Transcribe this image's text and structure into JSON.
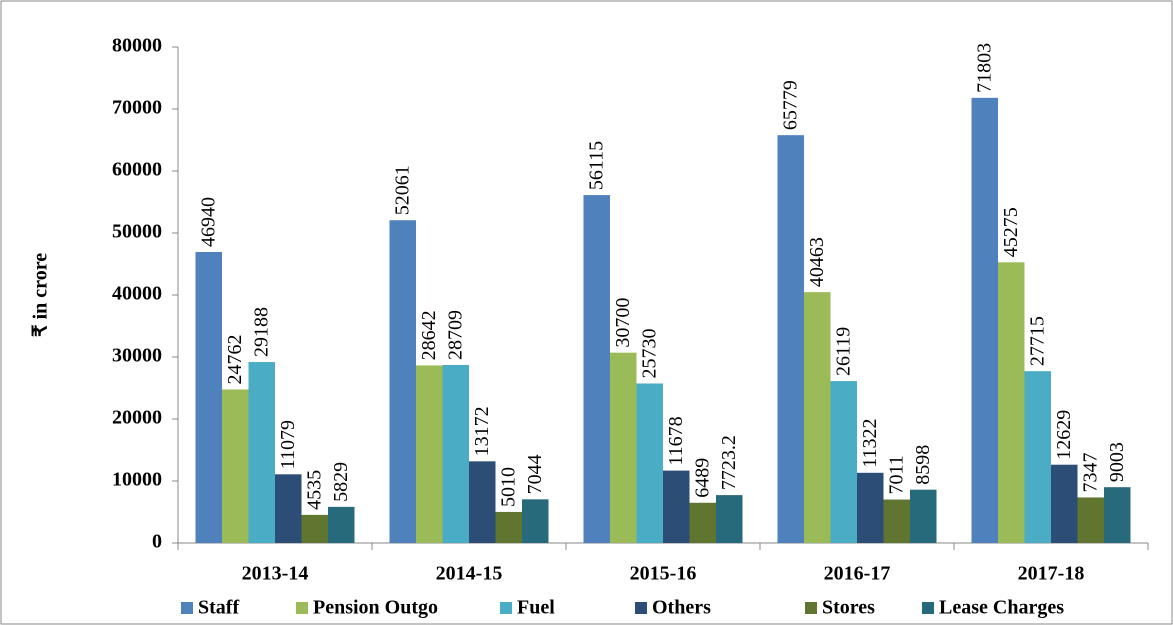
{
  "chart_data": {
    "type": "bar",
    "ylabel": "₹ in crore",
    "categories": [
      "2013-14",
      "2014-15",
      "2015-16",
      "2016-17",
      "2017-18"
    ],
    "series": [
      {
        "name": "Staff",
        "color": "#4f81bd",
        "values": [
          46940,
          52061,
          56115,
          65779,
          71803
        ]
      },
      {
        "name": "Pension Outgo",
        "color": "#9bbb59",
        "values": [
          24762,
          28642,
          30700,
          40463,
          45275
        ]
      },
      {
        "name": "Fuel",
        "color": "#4bacc6",
        "values": [
          29188,
          28709,
          25730,
          26119,
          27715
        ]
      },
      {
        "name": "Others",
        "color": "#2c4d75",
        "values": [
          11079,
          13172,
          11678,
          11322,
          12629
        ]
      },
      {
        "name": "Stores",
        "color": "#5f7530",
        "values": [
          4535,
          5010,
          6489,
          7011,
          7347
        ]
      },
      {
        "name": "Lease Charges",
        "color": "#276a7c",
        "values": [
          5829,
          7044,
          7723.2,
          8598,
          9003
        ]
      }
    ],
    "ylim": [
      0,
      80000
    ],
    "yticks": [
      0,
      10000,
      20000,
      30000,
      40000,
      50000,
      60000,
      70000,
      80000
    ],
    "grid": false,
    "legend": "bottom"
  }
}
